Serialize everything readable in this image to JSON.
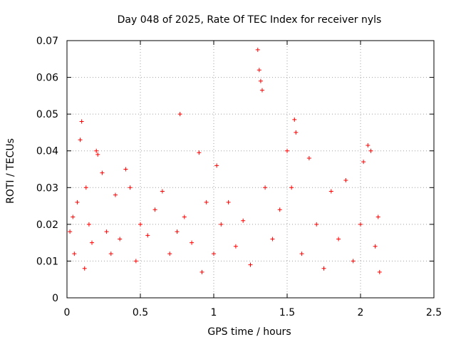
{
  "chart_data": {
    "type": "scatter",
    "title": "Day 048 of 2025, Rate Of TEC Index for receiver nyls",
    "xlabel": "GPS time / hours",
    "ylabel": "ROTI / TECUs",
    "xlim": [
      0,
      2.5
    ],
    "ylim": [
      0,
      0.07
    ],
    "xticks": [
      0,
      0.5,
      1,
      1.5,
      2,
      2.5
    ],
    "xtick_labels": [
      "0",
      "0.5",
      "1",
      "1.5",
      "2",
      "2.5"
    ],
    "yticks": [
      0,
      0.01,
      0.02,
      0.03,
      0.04,
      0.05,
      0.06,
      0.07
    ],
    "ytick_labels": [
      "0",
      "0.01",
      "0.02",
      "0.03",
      "0.04",
      "0.05",
      "0.06",
      "0.07"
    ],
    "grid": true,
    "marker": "+",
    "series_color": "#ff0000",
    "series": [
      {
        "name": "nyls",
        "points": [
          [
            0.02,
            0.018
          ],
          [
            0.04,
            0.022
          ],
          [
            0.05,
            0.012
          ],
          [
            0.07,
            0.026
          ],
          [
            0.09,
            0.043
          ],
          [
            0.1,
            0.048
          ],
          [
            0.12,
            0.008
          ],
          [
            0.13,
            0.03
          ],
          [
            0.15,
            0.02
          ],
          [
            0.17,
            0.015
          ],
          [
            0.2,
            0.04
          ],
          [
            0.21,
            0.039
          ],
          [
            0.24,
            0.034
          ],
          [
            0.27,
            0.018
          ],
          [
            0.3,
            0.012
          ],
          [
            0.33,
            0.028
          ],
          [
            0.36,
            0.016
          ],
          [
            0.4,
            0.035
          ],
          [
            0.43,
            0.03
          ],
          [
            0.47,
            0.01
          ],
          [
            0.5,
            0.02
          ],
          [
            0.55,
            0.017
          ],
          [
            0.6,
            0.024
          ],
          [
            0.65,
            0.029
          ],
          [
            0.7,
            0.012
          ],
          [
            0.75,
            0.018
          ],
          [
            0.77,
            0.05
          ],
          [
            0.8,
            0.022
          ],
          [
            0.85,
            0.015
          ],
          [
            0.9,
            0.0395
          ],
          [
            0.92,
            0.007
          ],
          [
            0.95,
            0.026
          ],
          [
            1.0,
            0.012
          ],
          [
            1.02,
            0.036
          ],
          [
            1.05,
            0.02
          ],
          [
            1.1,
            0.026
          ],
          [
            1.15,
            0.014
          ],
          [
            1.2,
            0.021
          ],
          [
            1.25,
            0.009
          ],
          [
            1.3,
            0.0675
          ],
          [
            1.31,
            0.062
          ],
          [
            1.32,
            0.059
          ],
          [
            1.33,
            0.0565
          ],
          [
            1.35,
            0.03
          ],
          [
            1.4,
            0.016
          ],
          [
            1.45,
            0.024
          ],
          [
            1.5,
            0.04
          ],
          [
            1.53,
            0.03
          ],
          [
            1.55,
            0.0485
          ],
          [
            1.56,
            0.045
          ],
          [
            1.6,
            0.012
          ],
          [
            1.65,
            0.038
          ],
          [
            1.7,
            0.02
          ],
          [
            1.75,
            0.008
          ],
          [
            1.8,
            0.029
          ],
          [
            1.85,
            0.016
          ],
          [
            1.9,
            0.032
          ],
          [
            1.95,
            0.01
          ],
          [
            2.0,
            0.02
          ],
          [
            2.02,
            0.037
          ],
          [
            2.05,
            0.0415
          ],
          [
            2.07,
            0.04
          ],
          [
            2.1,
            0.014
          ],
          [
            2.12,
            0.022
          ],
          [
            2.13,
            0.007
          ]
        ]
      }
    ]
  }
}
